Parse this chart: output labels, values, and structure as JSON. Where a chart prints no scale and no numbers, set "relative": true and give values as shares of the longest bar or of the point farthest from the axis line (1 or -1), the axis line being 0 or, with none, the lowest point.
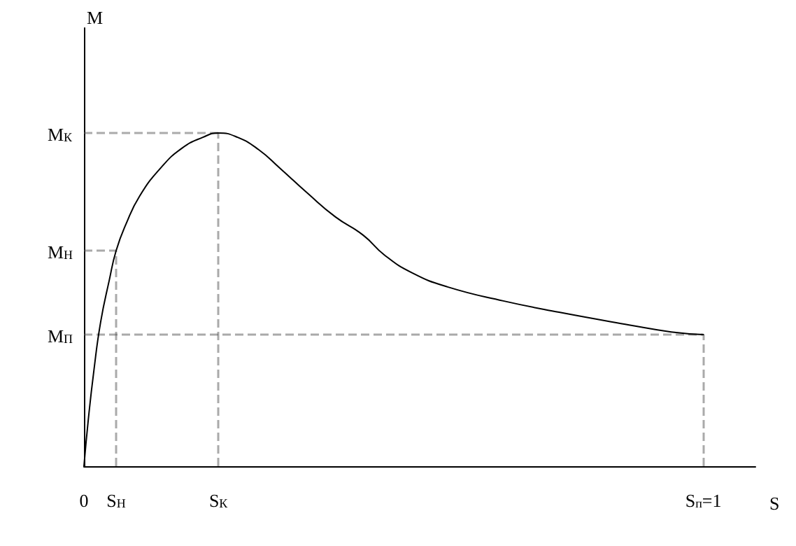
{
  "chart_data": {
    "type": "line",
    "relative": true,
    "xlabel": "S",
    "annotations": [
      "M"
    ],
    "xlim": [
      0,
      1.084
    ],
    "xticks": [
      {
        "value": 0,
        "label": "0"
      },
      {
        "value": 0.052,
        "label": "S$_{Н}$"
      },
      {
        "value": 0.217,
        "label": "S$_{К}$"
      },
      {
        "value": 1,
        "label": "S$_{п}$=1"
      }
    ],
    "ref_lines": [
      {
        "axis": "y",
        "value": 0.395,
        "label": "M$_{П}$",
        "color": "#555555",
        "line_style": "dashed"
      },
      {
        "axis": "y",
        "value": 0.647,
        "label": "M$_{Н}$",
        "color": "#555555",
        "line_style": "dashed"
      },
      {
        "axis": "y",
        "value": 1,
        "label": "M$_{К}$",
        "color": "#555555",
        "line_style": "dashed"
      },
      {
        "axis": "x",
        "value": 1,
        "color": "#555555",
        "line_style": "dashed"
      },
      {
        "axis": "x",
        "value": 0.052,
        "color": "#555555",
        "line_style": "dashed"
      },
      {
        "axis": "x",
        "value": 0.217,
        "color": "#555555",
        "line_style": "dashed"
      }
    ],
    "series": [
      {
        "color": "#000000",
        "x": [
          0,
          0.007,
          0.016,
          0.027,
          0.041,
          0.052,
          0.068,
          0.09,
          0.124,
          0.158,
          0.192,
          0.217,
          0.248,
          0.282,
          0.316,
          0.361,
          0.406,
          0.451,
          0.485,
          0.53,
          0.587,
          0.677,
          0.767,
          0.88,
          0.948,
          1
        ],
        "values": [
          0,
          0.139,
          0.286,
          0.433,
          0.559,
          0.647,
          0.727,
          0.811,
          0.895,
          0.954,
          0.987,
          1,
          0.987,
          0.95,
          0.895,
          0.819,
          0.748,
          0.693,
          0.634,
          0.58,
          0.538,
          0.496,
          0.462,
          0.424,
          0.403,
          0.395
        ]
      }
    ],
    "grid": false,
    "marker": "none",
    "line_style": "solid"
  }
}
